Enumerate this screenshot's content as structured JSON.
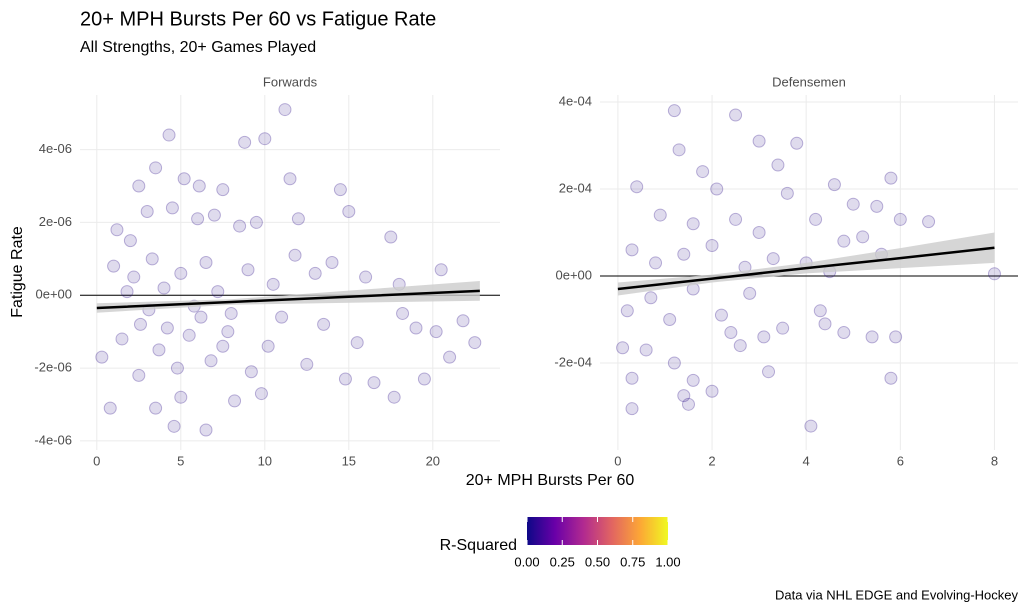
{
  "title": "20+ MPH Bursts Per 60 vs Fatigue Rate",
  "subtitle": "All Strengths, 20+ Games Played",
  "x_label": "20+ MPH Bursts Per 60",
  "y_label": "Fatigue Rate",
  "caption": "Data via NHL EDGE and Evolving-Hockey",
  "legend": {
    "title": "R-Squared",
    "limits": [
      0,
      1
    ],
    "colors": [
      "#0d0887",
      "#6a00a8",
      "#b12a90",
      "#e16462",
      "#fca636",
      "#f0f921"
    ],
    "ticks": [
      {
        "value": 0,
        "label": "0.00"
      },
      {
        "value": 0.25,
        "label": "0.25"
      },
      {
        "value": 0.5,
        "label": "0.50"
      },
      {
        "value": 0.75,
        "label": "0.75"
      },
      {
        "value": 1,
        "label": "1.00"
      }
    ]
  },
  "chart_data": [
    {
      "type": "scatter",
      "title": "Forwards",
      "color": "#2a0e87",
      "grid": true,
      "hline": 0,
      "xlim": [
        -1,
        24
      ],
      "xticks": [
        0,
        5,
        10,
        15,
        20
      ],
      "ylim": [
        -4.25e-06,
        5.5e-06
      ],
      "yticks": [
        {
          "value": -4e-06,
          "label": "-4e-06"
        },
        {
          "value": -2e-06,
          "label": "-2e-06"
        },
        {
          "value": 0,
          "label": "0e+00"
        },
        {
          "value": 2e-06,
          "label": "2e-06"
        },
        {
          "value": 4e-06,
          "label": "4e-06"
        }
      ],
      "x": [
        4.3,
        11.2,
        10,
        8.8,
        3.5,
        5.2,
        2.5,
        6.1,
        11.5,
        14.5,
        7.5,
        1.2,
        2,
        3,
        4.5,
        6,
        7,
        8.5,
        9.5,
        12,
        15,
        17.5,
        1,
        2.2,
        3.3,
        4,
        5,
        5.8,
        6.5,
        7.2,
        8,
        9,
        10.5,
        11.8,
        13,
        14,
        16,
        18,
        20.5,
        0.3,
        1.5,
        2.6,
        3.7,
        4.8,
        5.5,
        6.8,
        7.8,
        9.2,
        10.2,
        11,
        12.5,
        13.5,
        14.8,
        16.5,
        17.7,
        19.5,
        21,
        22.5,
        19,
        20.2,
        0.8,
        2.5,
        3.5,
        4.6,
        6.5,
        5,
        8.2,
        9.8,
        15.5,
        18.2,
        21.8,
        1.8,
        3.1,
        4.2,
        6.2,
        7.5
      ],
      "values": [
        4.4e-06,
        5.1e-06,
        4.3e-06,
        4.2e-06,
        3.5e-06,
        3.2e-06,
        3e-06,
        3e-06,
        3.2e-06,
        2.9e-06,
        2.9e-06,
        1.8e-06,
        1.5e-06,
        2.3e-06,
        2.4e-06,
        2.1e-06,
        2.2e-06,
        1.9e-06,
        2e-06,
        2.1e-06,
        2.3e-06,
        1.6e-06,
        8e-07,
        5e-07,
        1e-06,
        2e-07,
        6e-07,
        -3e-07,
        9e-07,
        1e-07,
        -5e-07,
        7e-07,
        3e-07,
        1.1e-06,
        6e-07,
        9e-07,
        5e-07,
        3e-07,
        7e-07,
        -1.7e-06,
        -1.2e-06,
        -8e-07,
        -1.5e-06,
        -2e-06,
        -1.1e-06,
        -1.8e-06,
        -1e-06,
        -2.1e-06,
        -1.4e-06,
        -6e-07,
        -1.9e-06,
        -8e-07,
        -2.3e-06,
        -2.4e-06,
        -2.8e-06,
        -2.3e-06,
        -1.7e-06,
        -1.3e-06,
        -9e-07,
        -1e-06,
        -3.1e-06,
        -2.2e-06,
        -3.1e-06,
        -3.6e-06,
        -3.7e-06,
        -2.8e-06,
        -2.9e-06,
        -2.7e-06,
        -1.3e-06,
        -5e-07,
        -7e-07,
        1e-07,
        -4e-07,
        -9e-07,
        -6e-07,
        -1.4e-06
      ],
      "trend": {
        "x": [
          0,
          8,
          16,
          22.8
        ],
        "fit": [
          -3.5e-07,
          -1.85e-07,
          -2e-08,
          1.2e-07
        ],
        "lower": [
          -4.8e-07,
          -2.6e-07,
          -2e-07,
          -1.5e-07
        ],
        "upper": [
          -2.2e-07,
          -1.1e-07,
          1.6e-07,
          3.9e-07
        ],
        "color": "#000000",
        "band_color": "#cccccc"
      }
    },
    {
      "type": "scatter",
      "title": "Defensemen",
      "color": "#2a0e87",
      "grid": true,
      "hline": 0,
      "xlim": [
        -0.38,
        8.5
      ],
      "xticks": [
        0,
        2,
        4,
        6,
        8
      ],
      "ylim": [
        -0.0004,
        0.000416
      ],
      "yticks": [
        {
          "value": -0.0002,
          "label": "-2e-04"
        },
        {
          "value": 0,
          "label": "0e+00"
        },
        {
          "value": 0.0002,
          "label": "2e-04"
        },
        {
          "value": 0.0004,
          "label": "4e-04"
        }
      ],
      "x": [
        1.2,
        2.5,
        3,
        3.8,
        1.3,
        0.4,
        1.8,
        2.1,
        3.4,
        4.6,
        5.8,
        5,
        5.5,
        6.6,
        3.6,
        0.9,
        1.6,
        2.5,
        3,
        4.2,
        4.8,
        5.2,
        6,
        0.3,
        0.8,
        1.4,
        2,
        2.7,
        3.3,
        4,
        4.5,
        5.6,
        8,
        0.2,
        0.7,
        1.1,
        1.6,
        2.2,
        2.8,
        3.5,
        4.3,
        4.4,
        4.8,
        5.4,
        5.9,
        0.1,
        0.3,
        0.6,
        1.2,
        1.6,
        2.0,
        2.6,
        3.2,
        0.3,
        1.5,
        1.4,
        5.8,
        4.1,
        3.1,
        2.4
      ],
      "values": [
        0.00038,
        0.00037,
        0.00031,
        0.000305,
        0.00029,
        0.000205,
        0.00024,
        0.0002,
        0.000255,
        0.00021,
        0.000225,
        0.000165,
        0.00016,
        0.000125,
        0.00019,
        0.00014,
        0.00012,
        0.00013,
        0.0001,
        0.00013,
        8e-05,
        9e-05,
        0.00013,
        6e-05,
        3e-05,
        5e-05,
        7e-05,
        2e-05,
        4e-05,
        3e-05,
        1e-05,
        5e-05,
        5e-06,
        -8e-05,
        -5e-05,
        -0.0001,
        -3e-05,
        -9e-05,
        -4e-05,
        -0.00012,
        -8e-05,
        -0.00011,
        -0.00013,
        -0.00014,
        -0.00014,
        -0.000165,
        -0.000235,
        -0.00017,
        -0.0002,
        -0.00024,
        -0.000265,
        -0.00016,
        -0.00022,
        -0.000305,
        -0.000295,
        -0.000275,
        -0.000235,
        -0.000345,
        -0.00014,
        -0.00013
      ],
      "trend": {
        "x": [
          0,
          2,
          4,
          6,
          8
        ],
        "fit": [
          -3e-05,
          -6e-06,
          1.8e-05,
          4.1e-05,
          6.5e-05
        ],
        "lower": [
          -4.5e-05,
          -1.5e-05,
          6e-06,
          1.8e-05,
          3e-05
        ],
        "upper": [
          -1.5e-05,
          3e-06,
          3e-05,
          6.4e-05,
          0.0001
        ],
        "color": "#000000",
        "band_color": "#cccccc"
      }
    }
  ]
}
